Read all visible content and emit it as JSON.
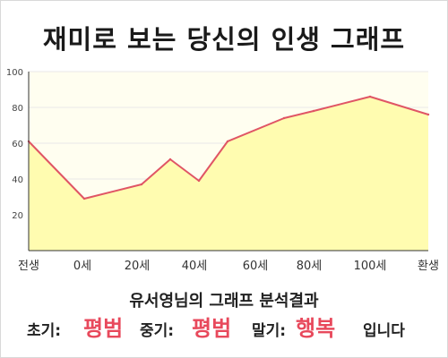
{
  "title": "재미로 보는 당신의 인생 그래프",
  "colors": {
    "line": "#e05565",
    "fill": "#fffcb0",
    "background": "#fffef0",
    "grid": "#e8e8e8",
    "axis": "#333333",
    "highlight": "#e8495c"
  },
  "chart_data": {
    "type": "area",
    "title": "재미로 보는 당신의 인생 그래프",
    "xlabel": "",
    "ylabel": "",
    "ylim": [
      0,
      100
    ],
    "yticks": [
      20,
      40,
      60,
      80,
      100
    ],
    "x_tick_labels": [
      "전생",
      "0세",
      "20세",
      "40세",
      "60세",
      "80세",
      "100세",
      "환생"
    ],
    "grid": "horizontal",
    "legend": "none",
    "points": [
      {
        "x": "전생",
        "y": 61
      },
      {
        "x": "0세",
        "y": 29
      },
      {
        "x": "20세",
        "y": 37
      },
      {
        "x": "30세",
        "y": 51
      },
      {
        "x": "40세",
        "y": 39
      },
      {
        "x": "50세",
        "y": 61
      },
      {
        "x": "70세",
        "y": 74
      },
      {
        "x": "80세",
        "y": 78
      },
      {
        "x": "100세",
        "y": 86
      },
      {
        "x": "환생",
        "y": 76
      }
    ]
  },
  "summary": {
    "heading": "유서영님의 그래프 분석결과",
    "early_label": "초기:",
    "early_value": "평범",
    "middle_label": "중기:",
    "middle_value": "평범",
    "late_label": "말기:",
    "late_value": "행복",
    "ending": "입니다"
  }
}
